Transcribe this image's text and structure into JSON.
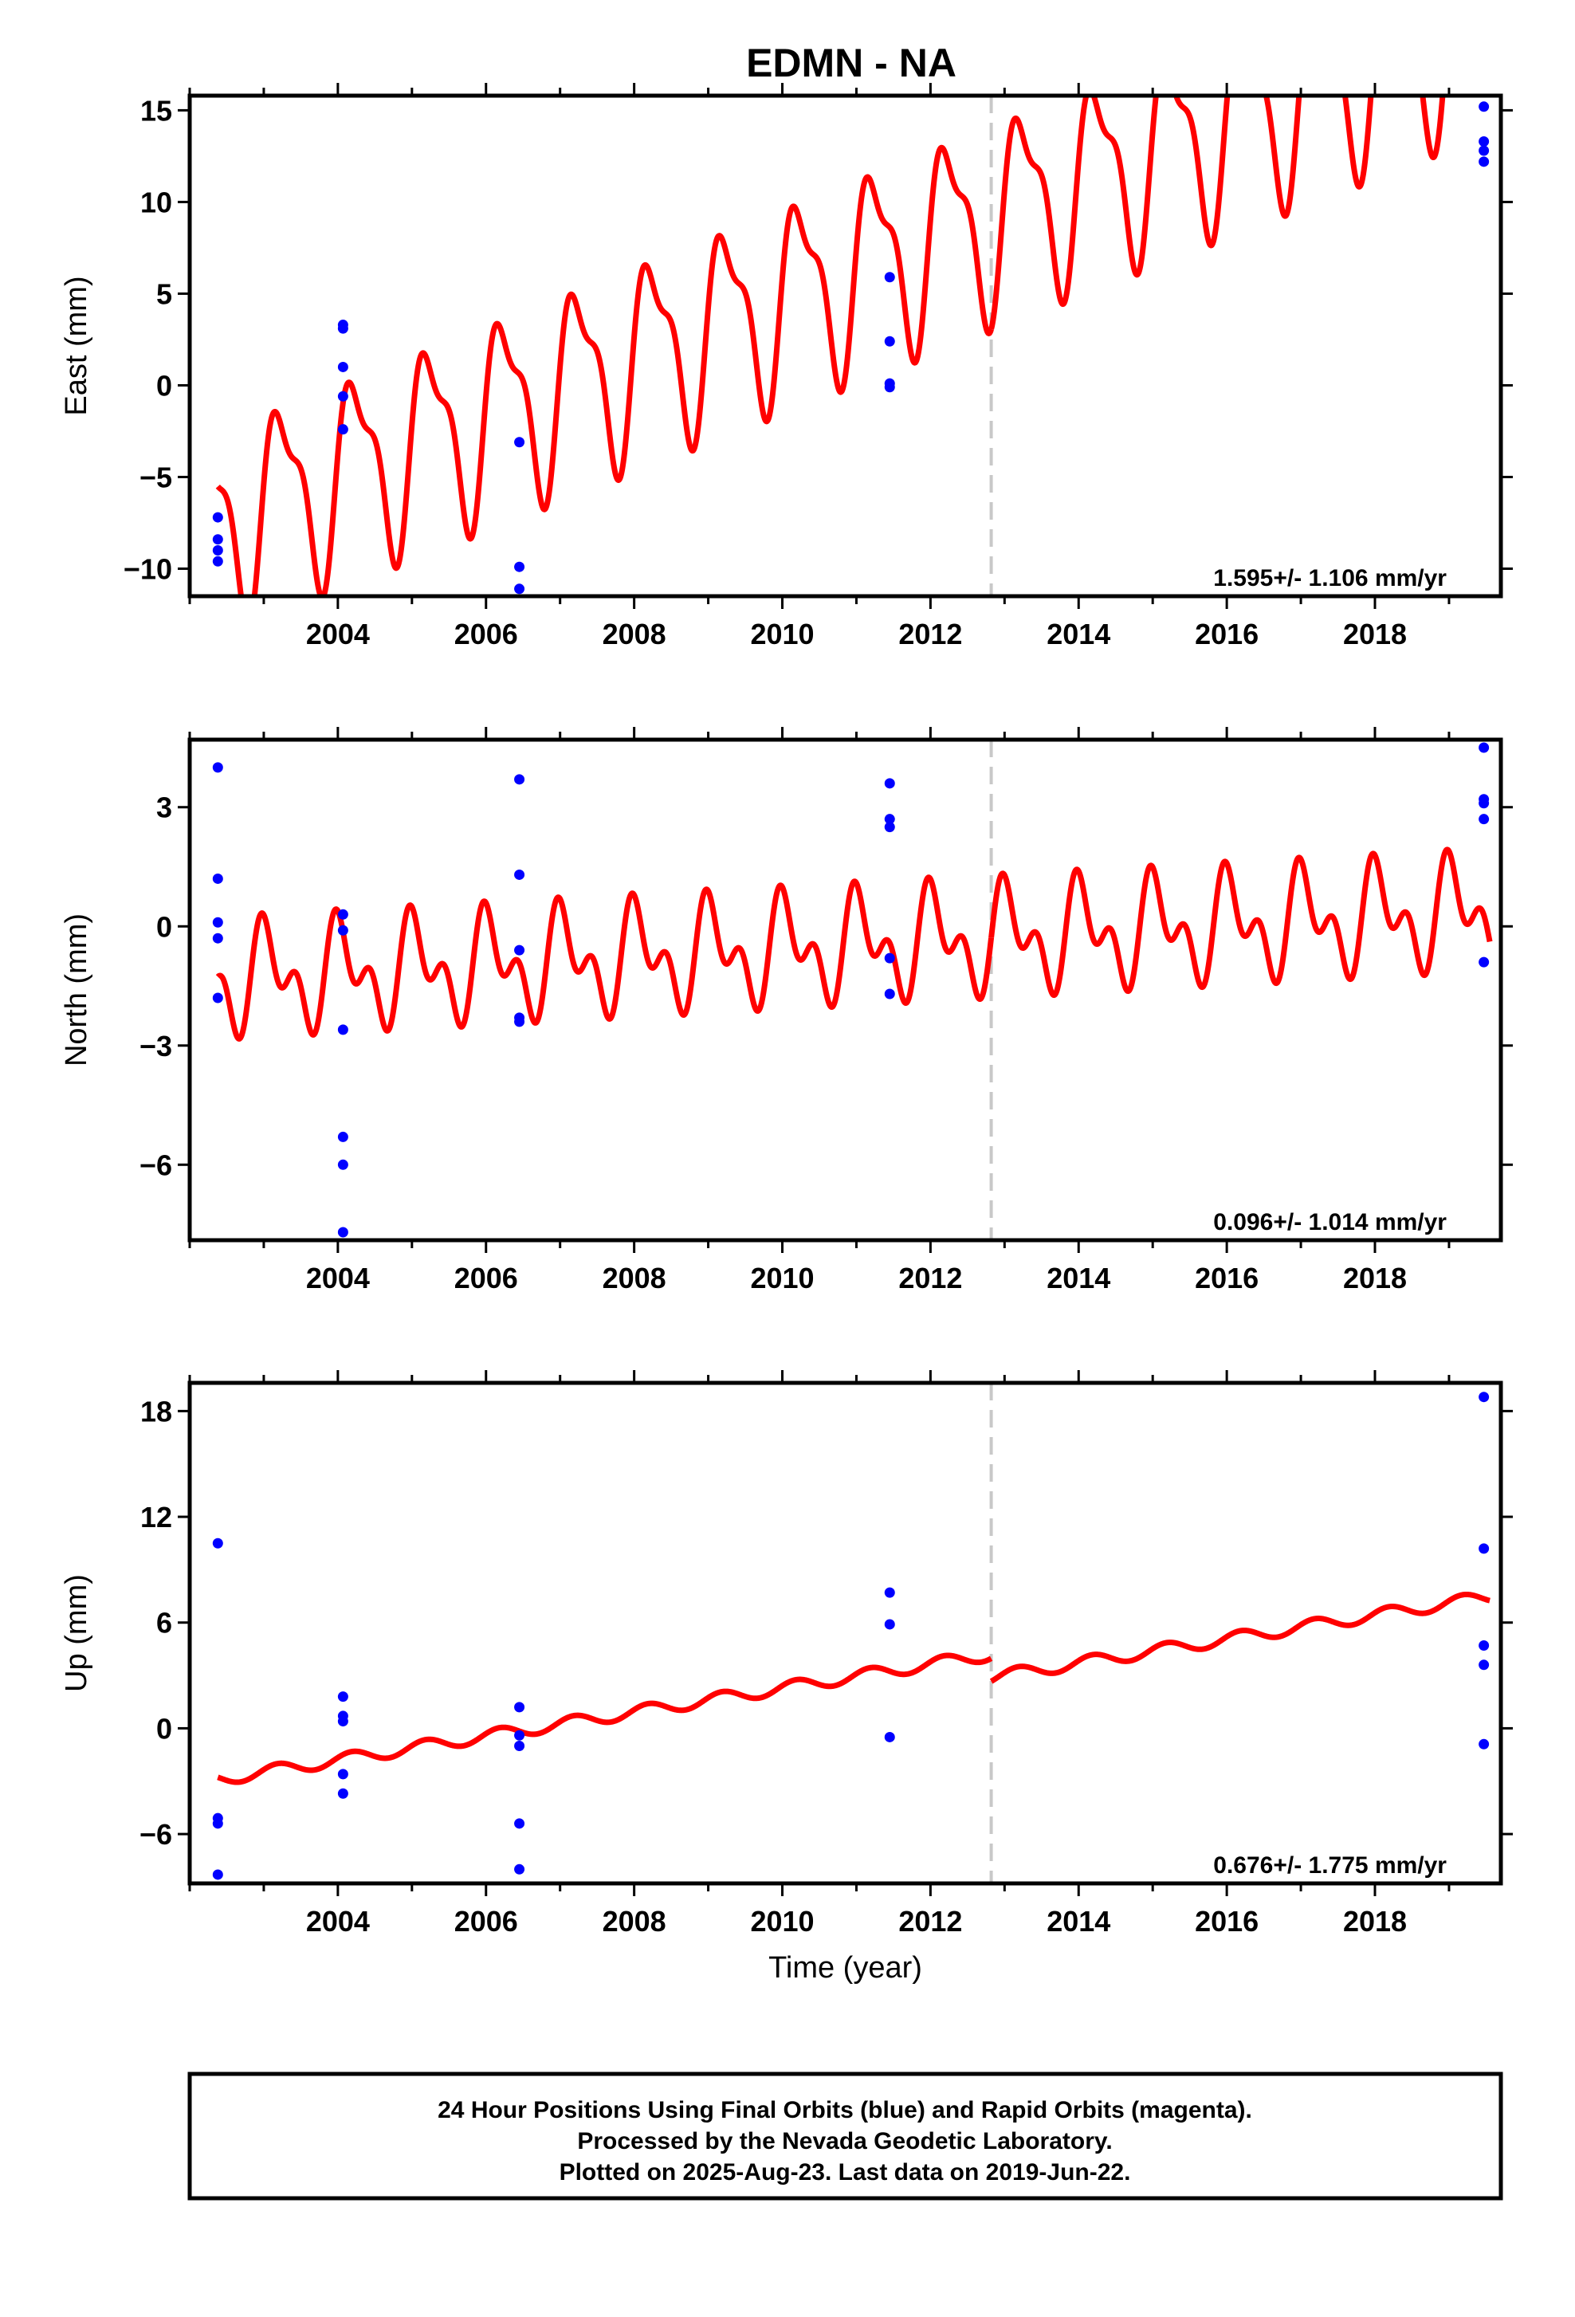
{
  "title": "EDMN - NA",
  "colors": {
    "model": "#ff0000",
    "final_orbits": "#0000ff",
    "break_line": "#c8c8c8",
    "frame": "#000000"
  },
  "chart_data": [
    {
      "type": "scatter",
      "name": "east",
      "ylabel": "East (mm)",
      "xlabel": "",
      "xlim": [
        2002.0,
        2019.7
      ],
      "ylim": [
        -11.5,
        15.8
      ],
      "yticks": [
        -10,
        -5,
        0,
        5,
        10,
        15
      ],
      "ytick_labels": [
        "−10",
        "−5",
        "0",
        "5",
        "10",
        "15"
      ],
      "xticks": [
        2004,
        2006,
        2008,
        2010,
        2012,
        2014,
        2016,
        2018
      ],
      "xtick_labels": [
        "2004",
        "2006",
        "2008",
        "2010",
        "2012",
        "2014",
        "2016",
        "2018"
      ],
      "rate_label": "1.595+/- 1.106 mm/yr",
      "break_year": 2012.82,
      "model": {
        "start": 2002.38,
        "end": 2019.55,
        "offset": -7.5,
        "slope": 1.6,
        "step_at": 2012.82,
        "step": 0.0,
        "annual_amp": 4.8,
        "annual_phase": 0.0,
        "semi_amp": 1.8,
        "semi_phase": 0.7
      },
      "points": [
        {
          "x": 2002.38,
          "y": -7.2
        },
        {
          "x": 2002.38,
          "y": -8.4
        },
        {
          "x": 2002.38,
          "y": -9.0
        },
        {
          "x": 2002.38,
          "y": -9.6
        },
        {
          "x": 2004.07,
          "y": 3.3
        },
        {
          "x": 2004.07,
          "y": 3.1
        },
        {
          "x": 2004.07,
          "y": 1.0
        },
        {
          "x": 2004.07,
          "y": -0.6
        },
        {
          "x": 2004.07,
          "y": -2.4
        },
        {
          "x": 2006.45,
          "y": -3.1
        },
        {
          "x": 2006.45,
          "y": -9.9
        },
        {
          "x": 2006.45,
          "y": -11.1
        },
        {
          "x": 2011.45,
          "y": 5.9
        },
        {
          "x": 2011.45,
          "y": 2.4
        },
        {
          "x": 2011.45,
          "y": 0.1
        },
        {
          "x": 2011.45,
          "y": -0.1
        },
        {
          "x": 2019.47,
          "y": 15.2
        },
        {
          "x": 2019.47,
          "y": 13.3
        },
        {
          "x": 2019.47,
          "y": 12.8
        },
        {
          "x": 2019.47,
          "y": 12.2
        }
      ]
    },
    {
      "type": "scatter",
      "name": "north",
      "ylabel": "North (mm)",
      "xlabel": "",
      "xlim": [
        2002.0,
        2019.7
      ],
      "ylim": [
        -7.9,
        4.7
      ],
      "yticks": [
        -6,
        -3,
        0,
        3
      ],
      "ytick_labels": [
        "−6",
        "−3",
        "0",
        "3"
      ],
      "xticks": [
        2004,
        2006,
        2008,
        2010,
        2012,
        2014,
        2016,
        2018
      ],
      "xtick_labels": [
        "2004",
        "2006",
        "2008",
        "2010",
        "2012",
        "2014",
        "2016",
        "2018"
      ],
      "rate_label": "0.096+/- 1.014 mm/yr",
      "break_year": 2012.82,
      "model": {
        "start": 2002.38,
        "end": 2019.55,
        "offset": -1.35,
        "slope": 0.1,
        "step_at": 2012.82,
        "step": 0.0,
        "annual_amp": 1.0,
        "annual_phase": 1.2,
        "semi_amp": 0.8,
        "semi_phase": 2.2
      },
      "points": [
        {
          "x": 2002.38,
          "y": 4.0
        },
        {
          "x": 2002.38,
          "y": 1.2
        },
        {
          "x": 2002.38,
          "y": 0.1
        },
        {
          "x": 2002.38,
          "y": -0.3
        },
        {
          "x": 2002.38,
          "y": -1.8
        },
        {
          "x": 2004.07,
          "y": 0.3
        },
        {
          "x": 2004.07,
          "y": -0.1
        },
        {
          "x": 2004.07,
          "y": -2.6
        },
        {
          "x": 2004.07,
          "y": -5.3
        },
        {
          "x": 2004.07,
          "y": -6.0
        },
        {
          "x": 2004.07,
          "y": -7.7
        },
        {
          "x": 2006.45,
          "y": 3.7
        },
        {
          "x": 2006.45,
          "y": 1.3
        },
        {
          "x": 2006.45,
          "y": -0.6
        },
        {
          "x": 2006.45,
          "y": -2.3
        },
        {
          "x": 2006.45,
          "y": -2.4
        },
        {
          "x": 2011.45,
          "y": 3.6
        },
        {
          "x": 2011.45,
          "y": 2.7
        },
        {
          "x": 2011.45,
          "y": 2.5
        },
        {
          "x": 2011.45,
          "y": -0.8
        },
        {
          "x": 2011.45,
          "y": -1.7
        },
        {
          "x": 2019.47,
          "y": 4.5
        },
        {
          "x": 2019.47,
          "y": 3.2
        },
        {
          "x": 2019.47,
          "y": 3.1
        },
        {
          "x": 2019.47,
          "y": 2.7
        },
        {
          "x": 2019.47,
          "y": -0.9
        }
      ]
    },
    {
      "type": "scatter",
      "name": "up",
      "ylabel": "Up (mm)",
      "xlabel": "Time (year)",
      "xlim": [
        2002.0,
        2019.7
      ],
      "ylim": [
        -8.8,
        19.6
      ],
      "yticks": [
        -6,
        0,
        6,
        12,
        18
      ],
      "ytick_labels": [
        "−6",
        "0",
        "6",
        "12",
        "18"
      ],
      "xticks": [
        2004,
        2006,
        2008,
        2010,
        2012,
        2014,
        2016,
        2018
      ],
      "xtick_labels": [
        "2004",
        "2006",
        "2008",
        "2010",
        "2012",
        "2014",
        "2016",
        "2018"
      ],
      "rate_label": "0.676+/- 1.775 mm/yr",
      "break_year": 2012.82,
      "model": {
        "start": 2002.38,
        "end": 2019.55,
        "offset": -2.9,
        "slope": 0.68,
        "step_at": 2012.82,
        "step": -1.3,
        "annual_amp": 0.35,
        "annual_phase": 0.4,
        "semi_amp": 0.0,
        "semi_phase": 0.0
      },
      "points": [
        {
          "x": 2002.38,
          "y": 10.5
        },
        {
          "x": 2002.38,
          "y": -5.1
        },
        {
          "x": 2002.38,
          "y": -5.4
        },
        {
          "x": 2002.38,
          "y": -8.3
        },
        {
          "x": 2004.07,
          "y": 1.8
        },
        {
          "x": 2004.07,
          "y": 0.7
        },
        {
          "x": 2004.07,
          "y": 0.4
        },
        {
          "x": 2004.07,
          "y": -2.6
        },
        {
          "x": 2004.07,
          "y": -3.7
        },
        {
          "x": 2006.45,
          "y": 1.2
        },
        {
          "x": 2006.45,
          "y": -0.4
        },
        {
          "x": 2006.45,
          "y": -1.0
        },
        {
          "x": 2006.45,
          "y": -5.4
        },
        {
          "x": 2006.45,
          "y": -8.0
        },
        {
          "x": 2011.45,
          "y": 7.7
        },
        {
          "x": 2011.45,
          "y": 5.9
        },
        {
          "x": 2011.45,
          "y": -0.5
        },
        {
          "x": 2019.47,
          "y": 18.8
        },
        {
          "x": 2019.47,
          "y": 10.2
        },
        {
          "x": 2019.47,
          "y": 4.7
        },
        {
          "x": 2019.47,
          "y": 3.6
        },
        {
          "x": 2019.47,
          "y": -0.9
        }
      ]
    }
  ],
  "footer": {
    "line1": "24 Hour Positions Using Final Orbits (blue) and Rapid Orbits (magenta).",
    "line2": "Processed by the Nevada Geodetic Laboratory.",
    "line3": "Plotted on 2025-Aug-23. Last data on 2019-Jun-22."
  }
}
